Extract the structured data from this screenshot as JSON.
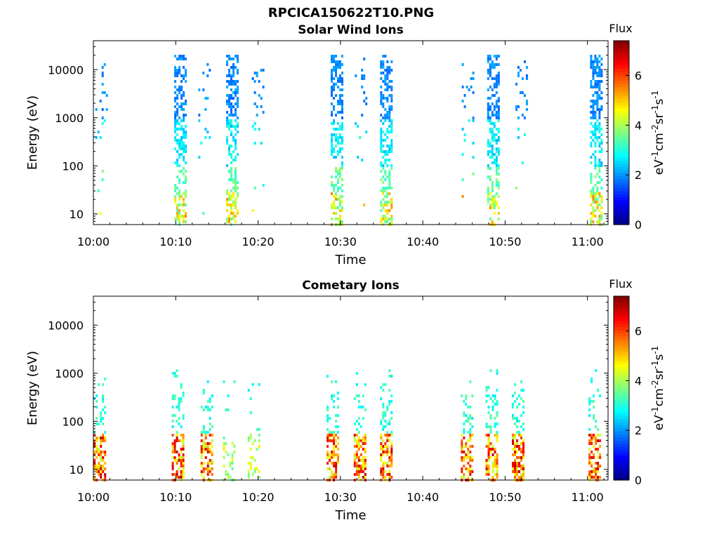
{
  "figure": {
    "title": "RPCICA150622T10.PNG"
  },
  "colorbar": {
    "label": "Flux",
    "unit_base": "eV",
    "unit_cm": "cm",
    "unit_sr": "sr",
    "unit_s": "s",
    "unit_exp_minus1": "-1",
    "unit_exp_minus2": "-2",
    "ticks": [
      "0",
      "2",
      "4",
      "6"
    ],
    "range": [
      0,
      7.4
    ],
    "colormap": [
      "#00007f",
      "#0000ff",
      "#007fff",
      "#00ffff",
      "#7fff7f",
      "#ffff00",
      "#ff7f00",
      "#ff0000",
      "#7f0000"
    ]
  },
  "chart_data": [
    {
      "type": "heatmap",
      "title": "Solar Wind Ions",
      "xlabel": "Time",
      "ylabel": "Energy (eV)",
      "x_ticks": [
        "10:00",
        "10:10",
        "10:20",
        "10:30",
        "10:40",
        "10:50",
        "11:00"
      ],
      "x_range_minutes": [
        0,
        62.5
      ],
      "y_ticks": [
        "10",
        "100",
        "1000",
        "10000"
      ],
      "y_scale": "log",
      "y_range": [
        6,
        40000
      ],
      "bursts": [
        {
          "t": 1.0,
          "flux": "sparse-high"
        },
        {
          "t": 10.5,
          "flux": "dense-mid"
        },
        {
          "t": 13.5,
          "flux": "sparse-mid"
        },
        {
          "t": 16.8,
          "flux": "dense-mid"
        },
        {
          "t": 20.0,
          "flux": "sparse-mid"
        },
        {
          "t": 29.5,
          "flux": "dense-mid"
        },
        {
          "t": 32.5,
          "flux": "sparse-mid"
        },
        {
          "t": 35.5,
          "flux": "dense-mid"
        },
        {
          "t": 45.5,
          "flux": "sparse-mid"
        },
        {
          "t": 48.5,
          "flux": "dense-mid"
        },
        {
          "t": 52.0,
          "flux": "sparse-mid"
        },
        {
          "t": 61.0,
          "flux": "dense-mid"
        }
      ]
    },
    {
      "type": "heatmap",
      "title": "Cometary Ions",
      "xlabel": "Time",
      "ylabel": "Energy (eV)",
      "x_ticks": [
        "10:00",
        "10:10",
        "10:20",
        "10:30",
        "10:40",
        "10:50",
        "11:00"
      ],
      "x_range_minutes": [
        0,
        62.5
      ],
      "y_ticks": [
        "10",
        "100",
        "1000",
        "10000"
      ],
      "y_scale": "log",
      "y_range": [
        6,
        40000
      ],
      "bursts": [
        {
          "t": 0.7,
          "flux": "high"
        },
        {
          "t": 10.2,
          "flux": "high"
        },
        {
          "t": 13.7,
          "flux": "high"
        },
        {
          "t": 16.5,
          "flux": "low"
        },
        {
          "t": 19.5,
          "flux": "low"
        },
        {
          "t": 29.0,
          "flux": "high"
        },
        {
          "t": 32.3,
          "flux": "high"
        },
        {
          "t": 35.5,
          "flux": "high"
        },
        {
          "t": 45.3,
          "flux": "high"
        },
        {
          "t": 48.3,
          "flux": "high"
        },
        {
          "t": 51.5,
          "flux": "high"
        },
        {
          "t": 60.8,
          "flux": "high"
        }
      ]
    }
  ]
}
